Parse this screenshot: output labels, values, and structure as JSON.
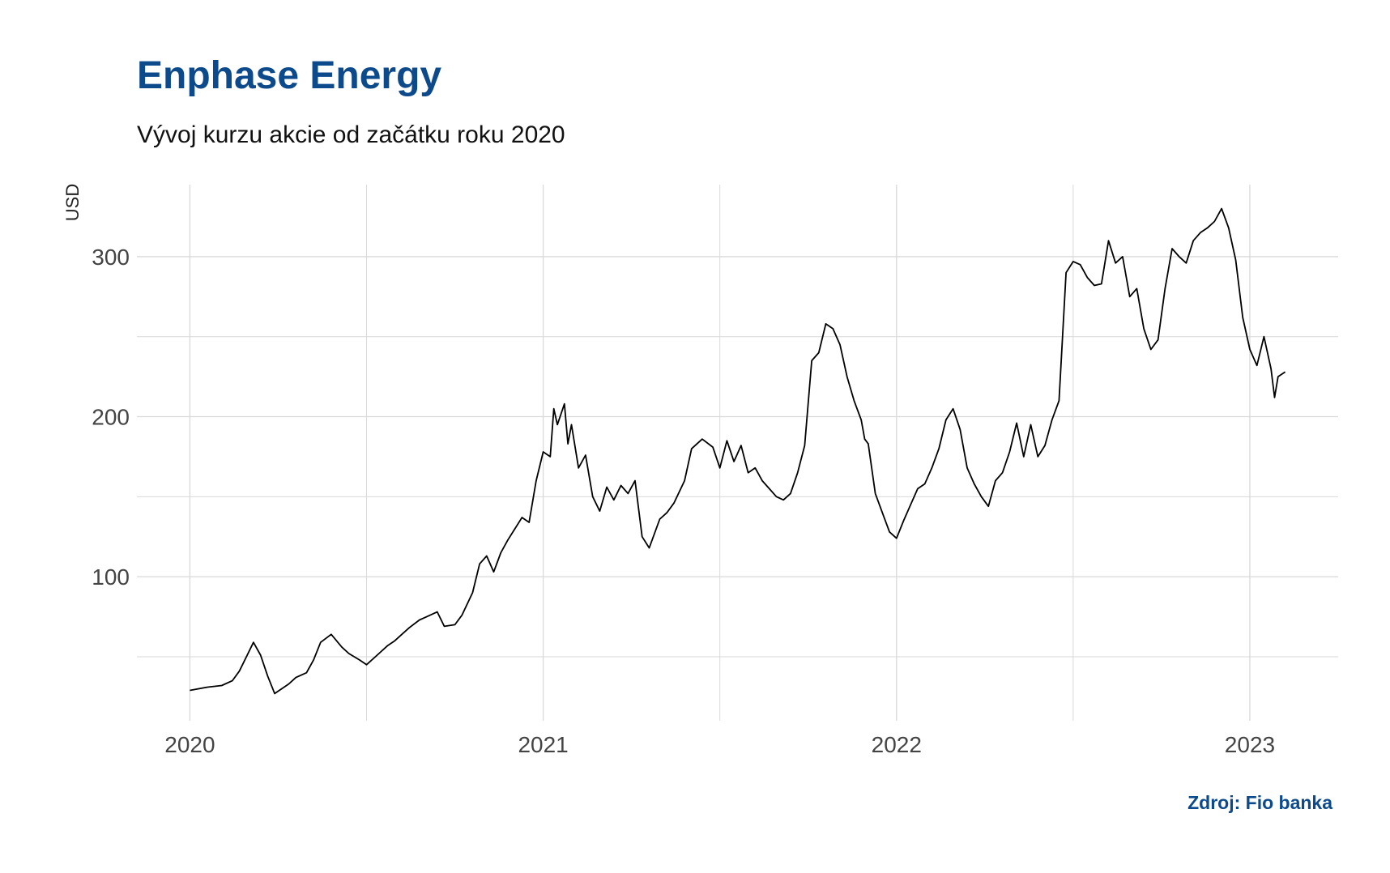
{
  "title": "Enphase Energy",
  "subtitle": "Vývoj kurzu akcie od začátku roku 2020",
  "caption": "Zdroj: Fio banka",
  "colors": {
    "title": "#0d4a8c",
    "caption": "#0d4a8c",
    "line": "#000000",
    "grid": "#d9d9d9"
  },
  "chart_data": {
    "type": "line",
    "ylabel": "USD",
    "xlabel": "",
    "grid": true,
    "legend": "none",
    "xlim": [
      2019.85,
      2023.25
    ],
    "ylim": [
      10,
      345
    ],
    "y_ticks": [
      100,
      200,
      300
    ],
    "x_ticks": [
      2020,
      2021,
      2022,
      2023
    ],
    "x_tick_labels": [
      "2020",
      "2021",
      "2022",
      "2023"
    ],
    "series": [
      {
        "x": [
          2020.0,
          2020.05,
          2020.09,
          2020.12,
          2020.14,
          2020.16,
          2020.18,
          2020.2,
          2020.22,
          2020.24,
          2020.26,
          2020.28,
          2020.3,
          2020.33,
          2020.35,
          2020.37,
          2020.4,
          2020.43,
          2020.45,
          2020.48,
          2020.5,
          2020.53,
          2020.56,
          2020.58,
          2020.6,
          2020.62,
          2020.65,
          2020.67,
          2020.7,
          2020.72,
          2020.75,
          2020.77,
          2020.8,
          2020.82,
          2020.84,
          2020.86,
          2020.88,
          2020.9,
          2020.92,
          2020.94,
          2020.96,
          2020.98,
          2021.0,
          2021.02,
          2021.03,
          2021.04,
          2021.06,
          2021.07,
          2021.08,
          2021.1,
          2021.12,
          2021.14,
          2021.16,
          2021.18,
          2021.2,
          2021.22,
          2021.24,
          2021.26,
          2021.28,
          2021.3,
          2021.33,
          2021.35,
          2021.37,
          2021.4,
          2021.42,
          2021.45,
          2021.48,
          2021.5,
          2021.52,
          2021.54,
          2021.56,
          2021.58,
          2021.6,
          2021.62,
          2021.64,
          2021.66,
          2021.68,
          2021.7,
          2021.72,
          2021.74,
          2021.76,
          2021.78,
          2021.8,
          2021.82,
          2021.84,
          2021.86,
          2021.88,
          2021.9,
          2021.91,
          2021.92,
          2021.94,
          2021.96,
          2021.98,
          2022.0,
          2022.02,
          2022.04,
          2022.06,
          2022.08,
          2022.1,
          2022.12,
          2022.14,
          2022.16,
          2022.18,
          2022.2,
          2022.22,
          2022.24,
          2022.26,
          2022.28,
          2022.3,
          2022.32,
          2022.34,
          2022.36,
          2022.38,
          2022.4,
          2022.42,
          2022.44,
          2022.46,
          2022.48,
          2022.5,
          2022.52,
          2022.54,
          2022.56,
          2022.58,
          2022.6,
          2022.62,
          2022.64,
          2022.66,
          2022.68,
          2022.7,
          2022.72,
          2022.74,
          2022.76,
          2022.78,
          2022.8,
          2022.82,
          2022.84,
          2022.86,
          2022.88,
          2022.9,
          2022.92,
          2022.94,
          2022.96,
          2022.98,
          2023.0,
          2023.02,
          2023.04,
          2023.06,
          2023.07,
          2023.08,
          2023.1
        ],
        "values": [
          29,
          31,
          32,
          35,
          41,
          50,
          59,
          51,
          38,
          27,
          30,
          33,
          37,
          40,
          48,
          59,
          64,
          56,
          52,
          48,
          45,
          51,
          57,
          60,
          64,
          68,
          73,
          75,
          78,
          69,
          70,
          76,
          90,
          108,
          113,
          103,
          115,
          123,
          130,
          137,
          134,
          160,
          178,
          175,
          205,
          195,
          208,
          183,
          195,
          168,
          176,
          150,
          141,
          156,
          148,
          157,
          152,
          160,
          125,
          118,
          136,
          140,
          146,
          160,
          180,
          186,
          181,
          168,
          185,
          172,
          182,
          165,
          168,
          160,
          155,
          150,
          148,
          152,
          165,
          182,
          235,
          240,
          258,
          255,
          245,
          225,
          210,
          198,
          186,
          183,
          152,
          140,
          128,
          124,
          135,
          145,
          155,
          158,
          168,
          180,
          198,
          205,
          192,
          168,
          158,
          150,
          144,
          160,
          165,
          178,
          196,
          175,
          195,
          175,
          182,
          198,
          210,
          290,
          297,
          295,
          287,
          282,
          283,
          310,
          296,
          300,
          275,
          280,
          255,
          242,
          248,
          280,
          305,
          300,
          296,
          310,
          315,
          318,
          322,
          330,
          318,
          298,
          262,
          242,
          232,
          250,
          230,
          212,
          225,
          228
        ]
      }
    ]
  }
}
